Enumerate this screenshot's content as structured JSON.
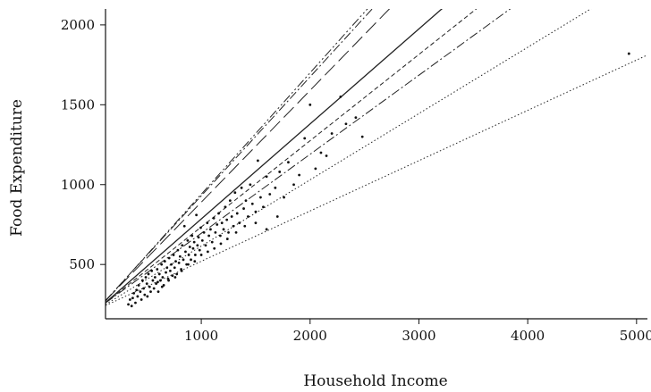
{
  "chart_data": {
    "type": "scatter",
    "xlabel": "Household Income",
    "ylabel": "Food Expenditure",
    "xlim": [
      120,
      5100
    ],
    "ylim": [
      160,
      2100
    ],
    "xticks": [
      1000,
      2000,
      3000,
      4000,
      5000
    ],
    "yticks": [
      500,
      1000,
      1500,
      2000
    ],
    "points": [
      [
        370,
        290
      ],
      [
        380,
        320
      ],
      [
        395,
        260
      ],
      [
        405,
        340
      ],
      [
        415,
        300
      ],
      [
        425,
        370
      ],
      [
        440,
        330
      ],
      [
        450,
        280
      ],
      [
        460,
        400
      ],
      [
        470,
        350
      ],
      [
        480,
        310
      ],
      [
        490,
        420
      ],
      [
        500,
        380
      ],
      [
        505,
        300
      ],
      [
        515,
        440
      ],
      [
        525,
        360
      ],
      [
        535,
        330
      ],
      [
        545,
        460
      ],
      [
        555,
        400
      ],
      [
        565,
        350
      ],
      [
        575,
        420
      ],
      [
        585,
        380
      ],
      [
        595,
        470
      ],
      [
        605,
        330
      ],
      [
        615,
        440
      ],
      [
        625,
        400
      ],
      [
        635,
        500
      ],
      [
        645,
        420
      ],
      [
        655,
        370
      ],
      [
        665,
        520
      ],
      [
        675,
        450
      ],
      [
        685,
        480
      ],
      [
        695,
        410
      ],
      [
        705,
        540
      ],
      [
        715,
        460
      ],
      [
        725,
        500
      ],
      [
        735,
        430
      ],
      [
        745,
        560
      ],
      [
        755,
        480
      ],
      [
        765,
        520
      ],
      [
        775,
        440
      ],
      [
        785,
        590
      ],
      [
        795,
        510
      ],
      [
        805,
        550
      ],
      [
        815,
        470
      ],
      [
        825,
        620
      ],
      [
        835,
        530
      ],
      [
        845,
        740
      ],
      [
        855,
        580
      ],
      [
        865,
        500
      ],
      [
        875,
        650
      ],
      [
        885,
        560
      ],
      [
        895,
        610
      ],
      [
        905,
        530
      ],
      [
        915,
        680
      ],
      [
        925,
        600
      ],
      [
        935,
        640
      ],
      [
        945,
        560
      ],
      [
        955,
        810
      ],
      [
        965,
        620
      ],
      [
        975,
        670
      ],
      [
        985,
        590
      ],
      [
        995,
        730
      ],
      [
        1010,
        650
      ],
      [
        1025,
        700
      ],
      [
        1040,
        620
      ],
      [
        1055,
        760
      ],
      [
        1070,
        680
      ],
      [
        1085,
        720
      ],
      [
        1100,
        640
      ],
      [
        1115,
        790
      ],
      [
        1130,
        700
      ],
      [
        1145,
        750
      ],
      [
        1160,
        820
      ],
      [
        1175,
        680
      ],
      [
        1190,
        760
      ],
      [
        1205,
        720
      ],
      [
        1220,
        860
      ],
      [
        1235,
        780
      ],
      [
        1250,
        700
      ],
      [
        1265,
        900
      ],
      [
        1280,
        800
      ],
      [
        1295,
        740
      ],
      [
        1310,
        950
      ],
      [
        1330,
        820
      ],
      [
        1350,
        760
      ],
      [
        1370,
        980
      ],
      [
        1390,
        850
      ],
      [
        1410,
        900
      ],
      [
        1430,
        800
      ],
      [
        1450,
        1000
      ],
      [
        1470,
        880
      ],
      [
        1500,
        830
      ],
      [
        1520,
        1150
      ],
      [
        1545,
        920
      ],
      [
        1570,
        860
      ],
      [
        1600,
        1050
      ],
      [
        1630,
        940
      ],
      [
        1680,
        980
      ],
      [
        1720,
        1080
      ],
      [
        1760,
        920
      ],
      [
        1800,
        1140
      ],
      [
        1850,
        1000
      ],
      [
        1900,
        1060
      ],
      [
        1950,
        1290
      ],
      [
        2000,
        1500
      ],
      [
        2050,
        1100
      ],
      [
        2100,
        1200
      ],
      [
        2150,
        1180
      ],
      [
        2200,
        1320
      ],
      [
        2280,
        1550
      ],
      [
        2330,
        1380
      ],
      [
        2420,
        1420
      ],
      [
        2480,
        1300
      ],
      [
        4930,
        1820
      ],
      [
        330,
        250
      ],
      [
        345,
        280
      ],
      [
        360,
        240
      ],
      [
        600,
        390
      ],
      [
        640,
        360
      ],
      [
        700,
        400
      ],
      [
        760,
        420
      ],
      [
        820,
        460
      ],
      [
        880,
        500
      ],
      [
        940,
        520
      ],
      [
        1000,
        560
      ],
      [
        1060,
        580
      ],
      [
        1120,
        600
      ],
      [
        1180,
        630
      ],
      [
        1240,
        660
      ],
      [
        1320,
        700
      ],
      [
        1400,
        740
      ],
      [
        1500,
        760
      ],
      [
        1600,
        720
      ],
      [
        1700,
        800
      ]
    ],
    "lines": [
      {
        "style": "dotted",
        "intercept": 205,
        "slope": 0.315
      },
      {
        "style": "dotted",
        "intercept": 200,
        "slope": 0.415
      },
      {
        "style": "dashdot",
        "intercept": 200,
        "slope": 0.495
      },
      {
        "style": "dashed",
        "intercept": 195,
        "slope": 0.54
      },
      {
        "style": "solid",
        "intercept": 190,
        "slope": 0.595
      },
      {
        "style": "longdash",
        "intercept": 190,
        "slope": 0.7
      },
      {
        "style": "dashdot",
        "intercept": 185,
        "slope": 0.745
      },
      {
        "style": "dashdotdot",
        "intercept": 180,
        "slope": 0.76
      }
    ]
  }
}
